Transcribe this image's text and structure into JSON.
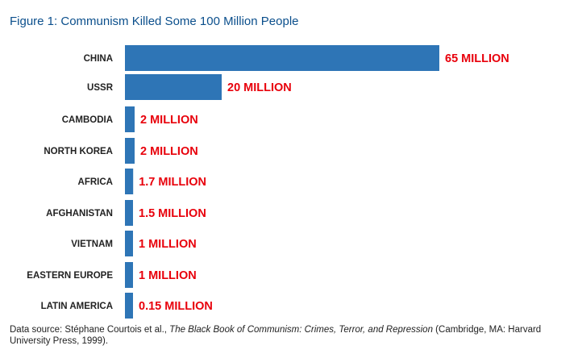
{
  "chart_data": {
    "type": "bar",
    "orientation": "horizontal",
    "title": "Figure 1: Communism Killed Some 100 Million People",
    "categories": [
      "CHINA",
      "USSR",
      "CAMBODIA",
      "NORTH KOREA",
      "AFRICA",
      "AFGHANISTAN",
      "VIETNAM",
      "EASTERN EUROPE",
      "LATIN AMERICA"
    ],
    "values": [
      65,
      20,
      2,
      2,
      1.7,
      1.5,
      1,
      1,
      0.15
    ],
    "value_labels": [
      "65 MILLION",
      "20 MILLION",
      "2 MILLION",
      "2 MILLION",
      "1.7 MILLION",
      "1.5 MILLION",
      "1 MILLION",
      "1 MILLION",
      "0.15 MILLION"
    ],
    "unit": "MILLION",
    "grid": false,
    "colors": {
      "bar": "#2e75b6",
      "value_label": "#e8000b",
      "title": "#0b4f8c"
    }
  },
  "source": {
    "prefix": "Data source: Stéphane Courtois et al., ",
    "book": "The Black Book of Communism: Crimes, Terror, and Repression",
    "suffix": " (Cambridge, MA: Harvard University Press, 1999)."
  }
}
